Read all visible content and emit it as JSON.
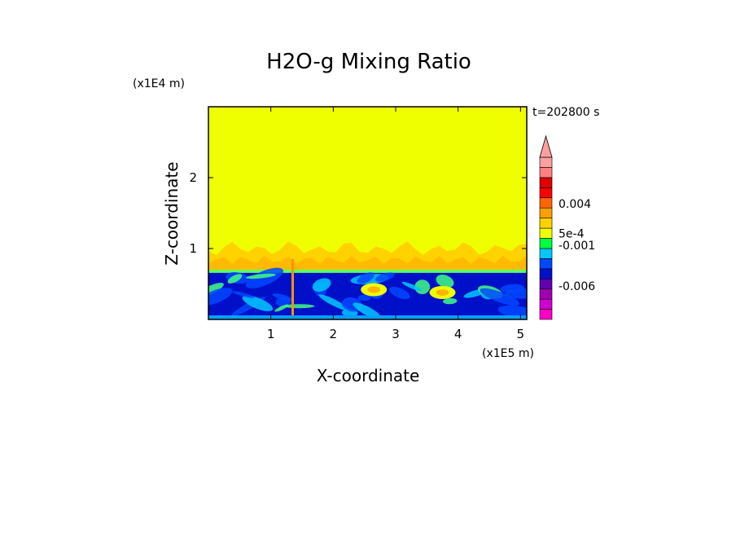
{
  "chart_data": {
    "type": "heatmap",
    "title": "H2O-g Mixing Ratio",
    "xlabel": "X-coordinate",
    "ylabel": "Z-coordinate",
    "x_multiplier": "(x1E5 m)",
    "y_multiplier": "(x1E4 m)",
    "time_label": "t=202800 s",
    "xlim": [
      0,
      5.1
    ],
    "ylim": [
      0,
      3.0
    ],
    "xticks": [
      {
        "value": 1,
        "label": "1"
      },
      {
        "value": 2,
        "label": "2"
      },
      {
        "value": 3,
        "label": "3"
      },
      {
        "value": 4,
        "label": "4"
      },
      {
        "value": 5,
        "label": "5"
      }
    ],
    "yticks": [
      {
        "value": 1,
        "label": "1"
      },
      {
        "value": 2,
        "label": "2"
      }
    ],
    "field_regions": {
      "upper_level_color": "#f0ff00",
      "mid_band_top": 1.0,
      "mid_band_colors": [
        "#ffd200",
        "#ffb400"
      ],
      "boundary_layer_top": 0.68,
      "boundary_colors": [
        "#0010c8",
        "#0048ff",
        "#00c8ff",
        "#40ff80",
        "#f0ff00",
        "#ffb400"
      ]
    },
    "colorbar": {
      "colors": [
        "#ff00c8",
        "#d000d0",
        "#a000b0",
        "#6000b0",
        "#0010c8",
        "#0048ff",
        "#00c8ff",
        "#00ff40",
        "#f0ff00",
        "#ffd200",
        "#ffa000",
        "#ff6400",
        "#ff0000",
        "#e00000",
        "#ff8080",
        "#ffa0a0"
      ],
      "labels": [
        {
          "text": "0.004",
          "level": 11.4
        },
        {
          "text": "5e-4",
          "level": 8.5
        },
        {
          "text": "-0.001",
          "level": 7.3
        },
        {
          "text": "-0.006",
          "level": 3.3
        }
      ]
    }
  }
}
